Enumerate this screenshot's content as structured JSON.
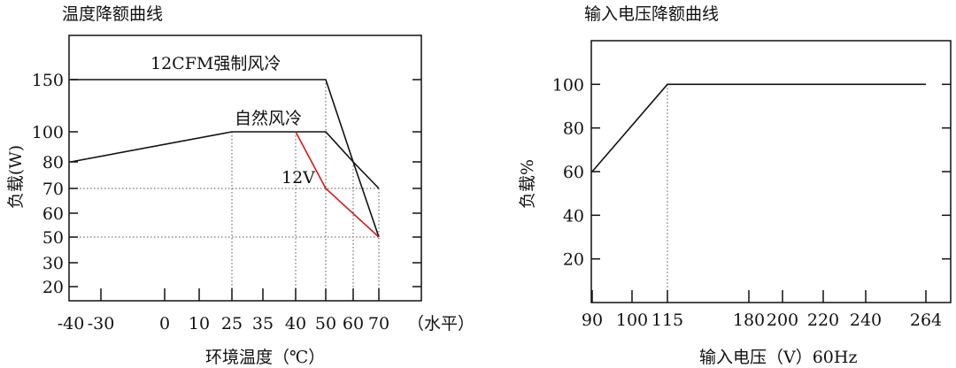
{
  "chart_data": [
    {
      "type": "line",
      "title": "温度降额曲线",
      "xlabel": "环境温度（℃）",
      "ylabel": "负载(W)",
      "x_unit_note": "（水平）",
      "x_ticks": [
        "-40",
        "-30",
        "0",
        "10",
        "25",
        "35",
        "40",
        "50",
        "60",
        "70"
      ],
      "y_ticks": [
        "20",
        "30",
        "50",
        "60",
        "70",
        "80",
        "100",
        "150"
      ],
      "grid": false,
      "series": [
        {
          "name": "12CFM强制风冷",
          "color": "#111111",
          "x": [
            -40,
            50,
            60,
            70
          ],
          "y": [
            150,
            150,
            80,
            70
          ]
        },
        {
          "name": "自然风冷",
          "color": "#111111",
          "x": [
            -40,
            25,
            50,
            60,
            70
          ],
          "y": [
            80,
            100,
            100,
            80,
            50
          ]
        },
        {
          "name": "12V",
          "color": "#d11b1b",
          "x": [
            40,
            50,
            70
          ],
          "y": [
            100,
            70,
            50
          ]
        }
      ]
    },
    {
      "type": "line",
      "title": "输入电压降额曲线",
      "xlabel": "输入电压（V）60Hz",
      "ylabel": "负载%",
      "x_ticks": [
        "90",
        "100",
        "115",
        "180",
        "200",
        "220",
        "240",
        "264"
      ],
      "y_ticks": [
        "20",
        "40",
        "60",
        "80",
        "100"
      ],
      "ylim": [
        0,
        120
      ],
      "grid": false,
      "series": [
        {
          "color": "#111111",
          "x": [
            90,
            115,
            264
          ],
          "y": [
            60,
            100,
            100
          ]
        }
      ]
    }
  ]
}
